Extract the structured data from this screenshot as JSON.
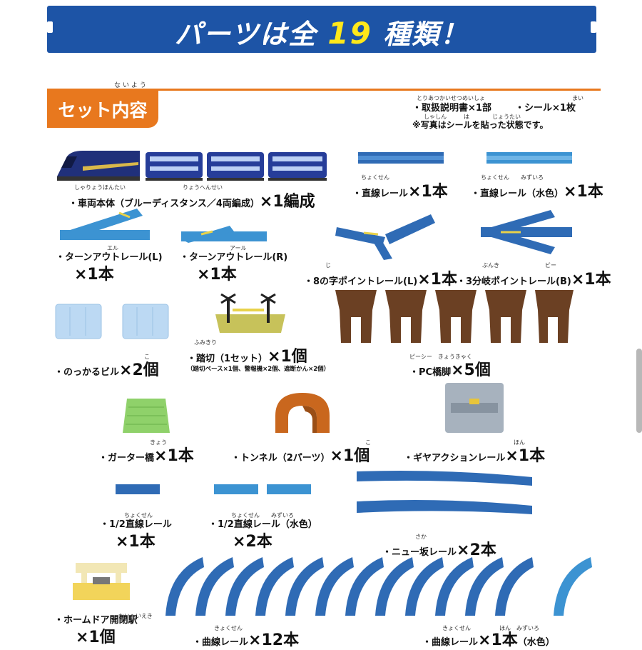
{
  "banner": {
    "prefix": "パーツは全",
    "number": "19",
    "suffix": "種類！"
  },
  "set": {
    "label": "セット内容",
    "ruby": "ないよう"
  },
  "notes": {
    "manual": "・取扱説明書×1部",
    "sticker": "・シール×1枚",
    "photo": "※写真はシールを貼った状態です。",
    "ruby_manual": "とりあつかいせつめいしょ",
    "ruby_sticker": "まい",
    "ruby_photo": "しゃしん　　　は　　　　じょうたい"
  },
  "items": {
    "train": {
      "name": "・車両本体（ブルーディスタンス／4両編成）",
      "qty": "×1編成",
      "ruby": "しゃりょうほんたい　　　　　　　　　　りょうへんせい"
    },
    "straight": {
      "name": "・直線レール",
      "qty": "×1本",
      "ruby": "ちょくせん"
    },
    "straight_light": {
      "name": "・直線レール（水色）",
      "qty": "×1本",
      "ruby": "ちょくせん　　みずいろ"
    },
    "turnout_l": {
      "name": "・ターンアウトレール(L)",
      "qty": "×1本",
      "ruby": "エル"
    },
    "turnout_r": {
      "name": "・ターンアウトレール(R)",
      "qty": "×1本",
      "ruby": "アール"
    },
    "point8": {
      "name": "・8の字ポイントレール(L)",
      "qty": "×1本",
      "ruby": "じ"
    },
    "point3": {
      "name": "・3分岐ポイントレール(B)",
      "qty": "×1本",
      "ruby": "ぶんき　　　　　　　　ビー"
    },
    "building": {
      "name": "・のっかるビル",
      "qty": "×2個",
      "ruby": "こ"
    },
    "crossing": {
      "name": "・踏切（1セット）",
      "qty": "×1個",
      "detail": "（踏切ベース×1個、警報機×2個、遮断かん×2個）",
      "ruby": "ふみきり"
    },
    "pier": {
      "name": "・PC橋脚",
      "qty": "×5個",
      "ruby": "ピーシー　きょうきゃく"
    },
    "girder": {
      "name": "・ガーター橋",
      "qty": "×1本",
      "ruby": "きょう"
    },
    "tunnel": {
      "name": "・トンネル（2パーツ）",
      "qty": "×1個",
      "ruby": "こ"
    },
    "gear": {
      "name": "・ギヤアクションレール",
      "qty": "×1本",
      "ruby": "ほん"
    },
    "half": {
      "name": "・1/2直線レール",
      "qty": "×1本",
      "ruby": "ちょくせん"
    },
    "half_light": {
      "name": "・1/2直線レール（水色）",
      "qty": "×2本",
      "ruby": "ちょくせん　　みずいろ"
    },
    "slope": {
      "name": "・ニュー坂レール",
      "qty": "×2本",
      "ruby": "さか"
    },
    "station": {
      "name": "・ホームドア開閉駅",
      "qty": "×1個",
      "ruby": "かいへいえき"
    },
    "curve": {
      "name": "・曲線レール",
      "qty": "×12本",
      "ruby": "きょくせん"
    },
    "curve_light": {
      "name": "・曲線レール",
      "qty": "×1本",
      "suffix": "（水色）",
      "ruby": "きょくせん　　　　　ほん　みずいろ"
    }
  },
  "colors": {
    "banner": "#1d54a6",
    "accent_orange": "#e8781e",
    "number_yellow": "#ffe81a",
    "rail_blue": "#2f6bb5",
    "rail_light": "#3c93d2"
  }
}
